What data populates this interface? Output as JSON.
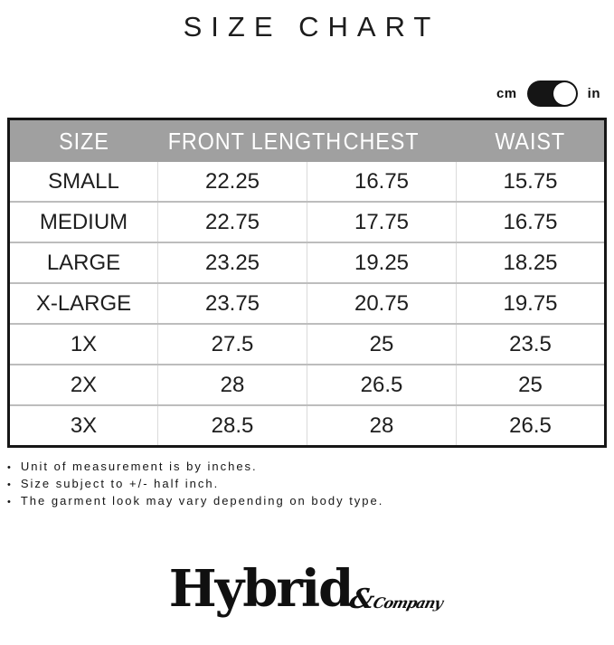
{
  "page_title": "SIZE CHART",
  "unit_toggle": {
    "cm_label": "cm",
    "in_label": "in",
    "selected": "in"
  },
  "table": {
    "headers": [
      "SIZE",
      "FRONT LENGTH",
      "CHEST",
      "WAIST"
    ],
    "rows": [
      [
        "SMALL",
        "22.25",
        "16.75",
        "15.75"
      ],
      [
        "MEDIUM",
        "22.75",
        "17.75",
        "16.75"
      ],
      [
        "LARGE",
        "23.25",
        "19.25",
        "18.25"
      ],
      [
        "X-LARGE",
        "23.75",
        "20.75",
        "19.75"
      ],
      [
        "1X",
        "27.5",
        "25",
        "23.5"
      ],
      [
        "2X",
        "28",
        "26.5",
        "25"
      ],
      [
        "3X",
        "28.5",
        "28",
        "26.5"
      ]
    ]
  },
  "notes_bullet": "•",
  "notes": [
    "Unit of measurement is by inches.",
    "Size subject to +/- half inch.",
    "The garment look may vary depending on body type."
  ],
  "logo": {
    "brand": "Hybrid",
    "ampersand": "&",
    "company": "Company"
  },
  "colors": {
    "header_bg": "#a0a0a0",
    "header_text": "#ffffff",
    "table_border": "#161616",
    "row_divider": "#bdbdbd",
    "column_divider": "#dadada",
    "toggle_bg": "#151515",
    "toggle_knob": "#ffffff"
  }
}
